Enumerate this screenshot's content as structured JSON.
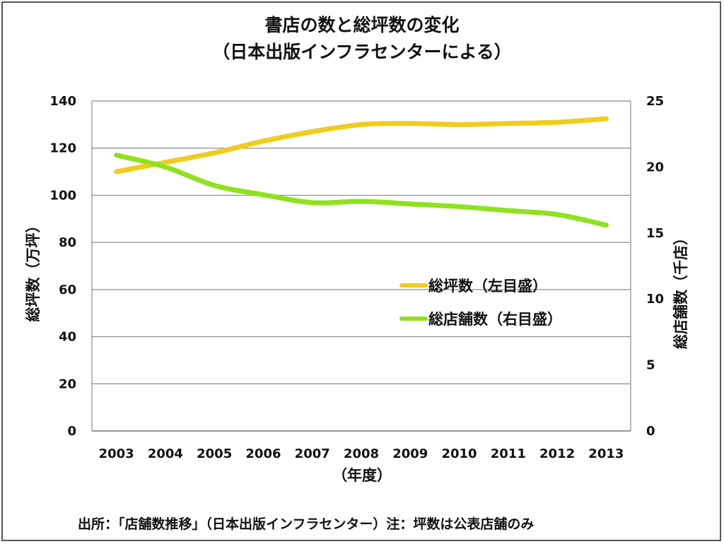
{
  "chart_data": {
    "type": "line",
    "title_line1": "書店の数と総坪数の変化",
    "title_line2": "（日本出版インフラセンターによる）",
    "xlabel": "（年度）",
    "ylabel_left": "総坪数（万坪）",
    "ylabel_right": "総店舗数（千店）",
    "categories": [
      "2003",
      "2004",
      "2005",
      "2006",
      "2007",
      "2008",
      "2009",
      "2010",
      "2011",
      "2012",
      "2013"
    ],
    "ylim_left": [
      0,
      140
    ],
    "ylim_right": [
      0,
      25
    ],
    "yticks_left": [
      "0",
      "20",
      "40",
      "60",
      "80",
      "100",
      "120",
      "140"
    ],
    "yticks_right": [
      "0",
      "5",
      "10",
      "15",
      "20",
      "25"
    ],
    "grid": true,
    "legend_position": "center-right",
    "series": [
      {
        "name": "総坪数（左目盛）",
        "axis": "left",
        "color": "#f0cc1e",
        "values": [
          110,
          114,
          118,
          123,
          127,
          130,
          130.5,
          130,
          130.5,
          131,
          132.5
        ]
      },
      {
        "name": "総店舗数（右目盛）",
        "axis": "right",
        "color": "#8fe21f",
        "values": [
          20.9,
          20,
          18.6,
          17.9,
          17.3,
          17.4,
          17.2,
          17,
          16.7,
          16.4,
          15.6
        ]
      }
    ]
  },
  "footer": {
    "source": "出所：「店舗数推移」（日本出版インフラセンター）注：坪数は公表店舗のみ"
  }
}
